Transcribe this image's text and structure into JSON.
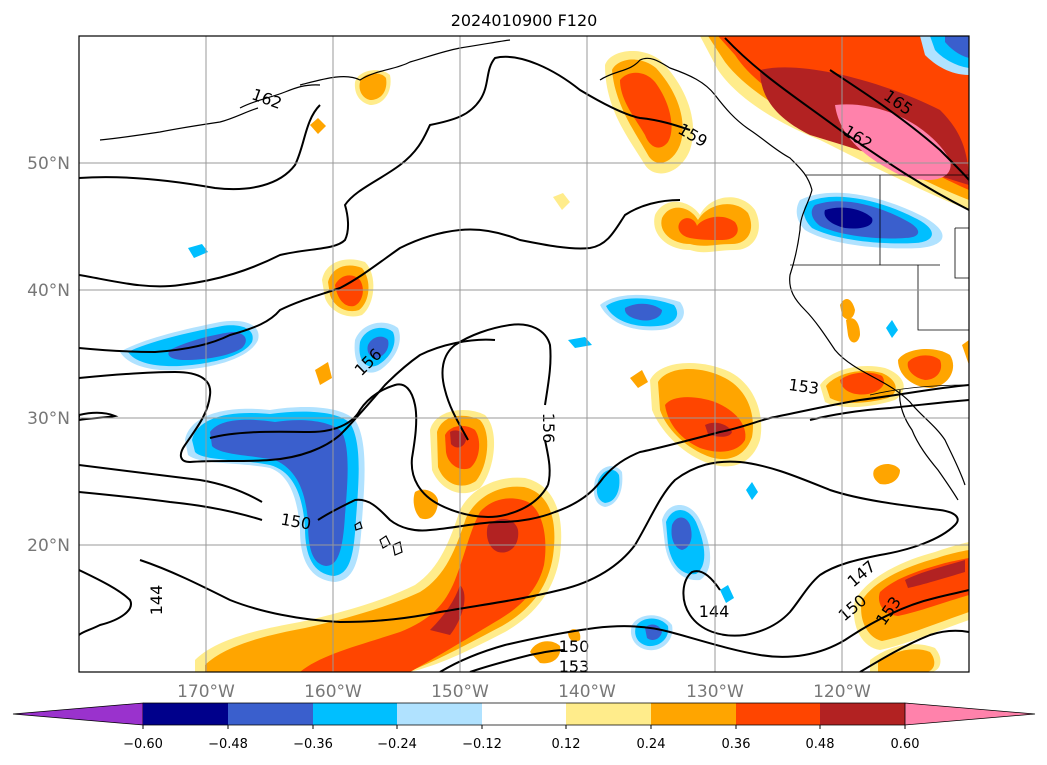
{
  "title": "2024010900 F120",
  "map": {
    "lon_range": [
      -180,
      -110
    ],
    "lat_range": [
      10,
      60
    ],
    "lon_ticks": [
      "170°W",
      "160°W",
      "150°W",
      "140°W",
      "130°W",
      "120°W"
    ],
    "lat_ticks": [
      "50°N",
      "40°N",
      "30°N",
      "20°N"
    ],
    "grid": true,
    "contour_labels": [
      "162",
      "159",
      "165",
      "162",
      "156",
      "153",
      "156",
      "150",
      "150",
      "144",
      "144",
      "147",
      "150",
      "153",
      "153"
    ]
  },
  "colorbar": {
    "tick_labels": [
      "−0.60",
      "−0.48",
      "−0.36",
      "−0.24",
      "−0.12",
      "0.12",
      "0.24",
      "0.36",
      "0.48",
      "0.60"
    ],
    "colors": [
      "#9a32cd",
      "#00008b",
      "#3a5fcd",
      "#00bfff",
      "#b0e2ff",
      "#ffffff",
      "#ffec8b",
      "#ffa500",
      "#ff4500",
      "#b22222",
      "#ff82ab"
    ],
    "extend": "both"
  }
}
